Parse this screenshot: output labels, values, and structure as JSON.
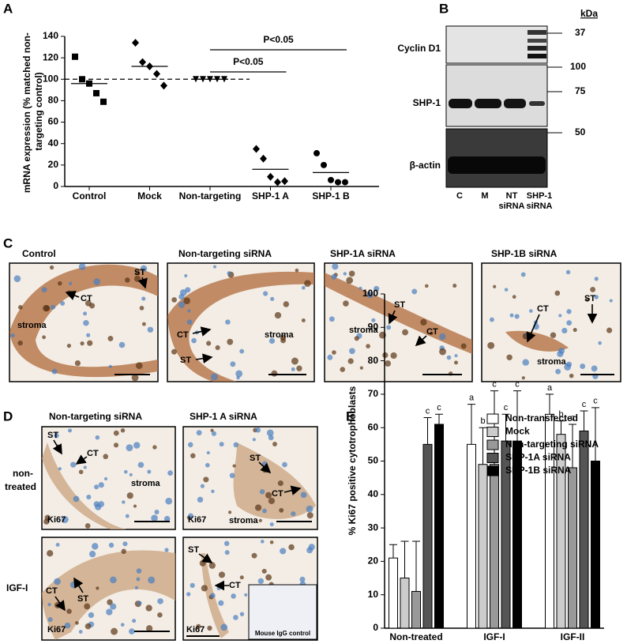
{
  "panel_labels": [
    "A",
    "B",
    "C",
    "D",
    "E"
  ],
  "chart_data": [
    {
      "type": "dot",
      "ylabel": [
        "mRNA expression (% matched non-",
        "targeting control)"
      ],
      "categories": [
        "Control",
        "Mock",
        "Non-targeting",
        "SHP-1 A",
        "SHP-1 B"
      ],
      "markers": [
        "square",
        "diamond",
        "triangle",
        "diamond",
        "circle"
      ],
      "points": [
        [
          121,
          100,
          96,
          87,
          79
        ],
        [
          134,
          116,
          112,
          105,
          94
        ],
        [
          100,
          100,
          100,
          100,
          100
        ],
        [
          35,
          26,
          9,
          4,
          5
        ],
        [
          31,
          20,
          6,
          4,
          4
        ]
      ],
      "means": [
        96,
        112,
        100,
        16,
        13
      ],
      "reference_line": 100,
      "annotations": [
        "P<0.05",
        "P<0.05"
      ],
      "ylim": [
        0,
        140
      ],
      "yticks": [
        0,
        20,
        40,
        60,
        80,
        100,
        120,
        140
      ]
    },
    {
      "type": "bar",
      "ylabel": "% Ki67 positive cytotrophoblasts",
      "categories": [
        "Non-treated",
        "IGF-I",
        "IGF-II"
      ],
      "series": [
        {
          "name": "Non-transfected",
          "color": "#ffffff",
          "values": [
            21,
            55,
            64
          ],
          "errors": [
            4,
            12,
            6
          ],
          "letters": [
            null,
            "a",
            "a"
          ]
        },
        {
          "name": "Mock",
          "color": "#cccccc",
          "values": [
            15,
            49,
            58
          ],
          "errors": [
            11,
            11,
            4
          ],
          "letters": [
            null,
            "b",
            "b"
          ]
        },
        {
          "name": "Non-targeting siRNA",
          "color": "#999999",
          "values": [
            11,
            49,
            48
          ],
          "errors": [
            15,
            22,
            13
          ],
          "letters": [
            null,
            "c",
            "c"
          ]
        },
        {
          "name": "SHP-1A siRNA",
          "color": "#555555",
          "values": [
            55,
            56,
            59
          ],
          "errors": [
            8,
            8,
            6
          ],
          "letters": [
            "c",
            "c",
            "c"
          ]
        },
        {
          "name": "SHP-1B siRNA",
          "color": "#000000",
          "values": [
            61,
            56,
            50
          ],
          "errors": [
            3,
            15,
            16
          ],
          "letters": [
            "c",
            "c",
            "c"
          ]
        }
      ],
      "ylim": [
        0,
        100
      ],
      "yticks": [
        0,
        10,
        20,
        30,
        40,
        50,
        60,
        70,
        80,
        90,
        100
      ]
    }
  ],
  "blot": {
    "unit": "kDa",
    "markers": [
      "37",
      "100",
      "75",
      "50"
    ],
    "proteins": [
      "Cyclin D1",
      "SHP-1",
      "β-actin"
    ],
    "lanes": [
      [
        "C"
      ],
      [
        "M"
      ],
      [
        "NT",
        "siRNA"
      ],
      [
        "SHP-1",
        "siRNA"
      ]
    ]
  },
  "panel_c": {
    "titles": [
      "Control",
      "Non-targeting siRNA",
      "SHP-1A siRNA",
      "SHP-1B siRNA"
    ],
    "labels": [
      [
        "ST",
        "CT",
        "stroma"
      ],
      [
        "CT",
        "stroma",
        "ST"
      ],
      [
        "ST",
        "CT",
        "stroma"
      ],
      [
        "CT",
        "ST",
        "stroma"
      ]
    ]
  },
  "panel_d": {
    "columns": [
      "Non-targeting siRNA",
      "SHP-1 A siRNA"
    ],
    "rows": [
      [
        "non-",
        "treated"
      ],
      [
        "IGF-I"
      ]
    ],
    "labels": [
      [
        "ST",
        "CT",
        "stroma",
        "Ki67"
      ],
      [
        "ST",
        "CT",
        "Ki67",
        "stroma"
      ],
      [
        "CT",
        "ST",
        "Ki67"
      ],
      [
        "ST",
        "CT",
        "Ki67",
        "Mouse IgG control"
      ]
    ]
  }
}
